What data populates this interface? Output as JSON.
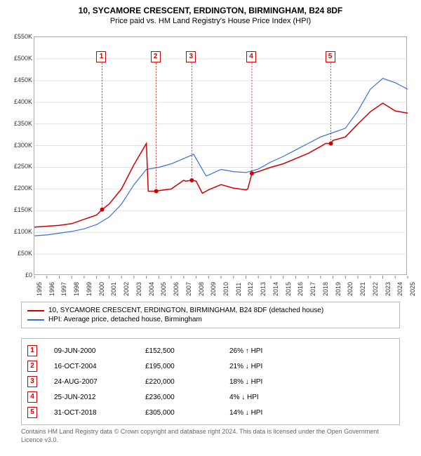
{
  "title": "10, SYCAMORE CRESCENT, ERDINGTON, BIRMINGHAM, B24 8DF",
  "subtitle": "Price paid vs. HM Land Registry's House Price Index (HPI)",
  "chart": {
    "type": "line",
    "background_color": "#ffffff",
    "grid_color": "#e0e0e0",
    "border_color": "#aaaaaa",
    "xlim": [
      1995,
      2025
    ],
    "ylim": [
      0,
      550
    ],
    "ytick_step": 50,
    "ytick_prefix": "£",
    "ytick_suffix": "K",
    "yticks": [
      "£0",
      "£50K",
      "£100K",
      "£150K",
      "£200K",
      "£250K",
      "£300K",
      "£350K",
      "£400K",
      "£450K",
      "£500K",
      "£550K"
    ],
    "xticks": [
      "1995",
      "1996",
      "1997",
      "1998",
      "1999",
      "2000",
      "2001",
      "2002",
      "2003",
      "2004",
      "2005",
      "2006",
      "2007",
      "2008",
      "2009",
      "2010",
      "2011",
      "2012",
      "2013",
      "2014",
      "2015",
      "2016",
      "2017",
      "2018",
      "2019",
      "2020",
      "2021",
      "2022",
      "2023",
      "2024",
      "2025"
    ],
    "title_fontsize": 12,
    "label_fontsize": 9,
    "series": {
      "price_paid": {
        "color": "#d00000",
        "width": 1.5,
        "label": "10, SYCAMORE CRESCENT, ERDINGTON, BIRMINGHAM, B24 8DF (detached house)",
        "data": [
          [
            1995,
            112
          ],
          [
            1996,
            114
          ],
          [
            1997,
            116
          ],
          [
            1998,
            120
          ],
          [
            1999,
            130
          ],
          [
            2000,
            140
          ],
          [
            2000.44,
            152.5
          ],
          [
            2001,
            165
          ],
          [
            2002,
            200
          ],
          [
            2003,
            256
          ],
          [
            2004,
            305
          ],
          [
            2004.15,
            195
          ],
          [
            2004.79,
            195
          ],
          [
            2005,
            196
          ],
          [
            2006,
            200
          ],
          [
            2007,
            220
          ],
          [
            2007.15,
            218
          ],
          [
            2007.65,
            220
          ],
          [
            2008,
            218
          ],
          [
            2008.5,
            190
          ],
          [
            2009,
            198
          ],
          [
            2010,
            210
          ],
          [
            2011,
            202
          ],
          [
            2012,
            198
          ],
          [
            2012.15,
            200
          ],
          [
            2012.48,
            236
          ],
          [
            2013,
            240
          ],
          [
            2014,
            250
          ],
          [
            2015,
            258
          ],
          [
            2016,
            270
          ],
          [
            2017,
            282
          ],
          [
            2018,
            298
          ],
          [
            2018.4,
            305
          ],
          [
            2018.83,
            305
          ],
          [
            2019,
            312
          ],
          [
            2020,
            320
          ],
          [
            2021,
            350
          ],
          [
            2022,
            378
          ],
          [
            2023,
            398
          ],
          [
            2024,
            380
          ],
          [
            2025,
            375
          ]
        ]
      },
      "hpi": {
        "color": "#3a6fd8",
        "width": 1.2,
        "label": "HPI: Average price, detached house, Birmingham",
        "data": [
          [
            1995,
            92
          ],
          [
            1996,
            94
          ],
          [
            1997,
            98
          ],
          [
            1998,
            102
          ],
          [
            1999,
            108
          ],
          [
            2000,
            118
          ],
          [
            2001,
            135
          ],
          [
            2002,
            165
          ],
          [
            2003,
            210
          ],
          [
            2004,
            245
          ],
          [
            2005,
            250
          ],
          [
            2006,
            258
          ],
          [
            2007,
            270
          ],
          [
            2007.8,
            280
          ],
          [
            2008,
            270
          ],
          [
            2008.8,
            230
          ],
          [
            2009,
            232
          ],
          [
            2010,
            245
          ],
          [
            2011,
            240
          ],
          [
            2012,
            238
          ],
          [
            2013,
            246
          ],
          [
            2014,
            262
          ],
          [
            2015,
            275
          ],
          [
            2016,
            290
          ],
          [
            2017,
            305
          ],
          [
            2018,
            320
          ],
          [
            2019,
            330
          ],
          [
            2020,
            340
          ],
          [
            2021,
            380
          ],
          [
            2022,
            430
          ],
          [
            2023,
            455
          ],
          [
            2024,
            445
          ],
          [
            2025,
            430
          ]
        ]
      }
    },
    "markers": [
      {
        "label": "1",
        "x": 2000.44,
        "y_top": 510
      },
      {
        "label": "2",
        "x": 2004.79,
        "y_top": 510
      },
      {
        "label": "3",
        "x": 2007.65,
        "y_top": 510
      },
      {
        "label": "4",
        "x": 2012.48,
        "y_top": 510
      },
      {
        "label": "5",
        "x": 2018.83,
        "y_top": 510
      }
    ],
    "price_points": [
      {
        "x": 2000.44,
        "y": 152.5
      },
      {
        "x": 2004.79,
        "y": 195
      },
      {
        "x": 2007.65,
        "y": 220
      },
      {
        "x": 2012.48,
        "y": 236
      },
      {
        "x": 2018.83,
        "y": 305
      }
    ]
  },
  "legend": {
    "items": [
      {
        "color": "#d00000",
        "label": "10, SYCAMORE CRESCENT, ERDINGTON, BIRMINGHAM, B24 8DF (detached house)"
      },
      {
        "color": "#3a6fd8",
        "label": "HPI: Average price, detached house, Birmingham"
      }
    ]
  },
  "transactions": [
    {
      "n": "1",
      "date": "09-JUN-2000",
      "price": "£152,500",
      "pct": "26% ↑ HPI"
    },
    {
      "n": "2",
      "date": "16-OCT-2004",
      "price": "£195,000",
      "pct": "21% ↓ HPI"
    },
    {
      "n": "3",
      "date": "24-AUG-2007",
      "price": "£220,000",
      "pct": "18% ↓ HPI"
    },
    {
      "n": "4",
      "date": "25-JUN-2012",
      "price": "£236,000",
      "pct": "4% ↓ HPI"
    },
    {
      "n": "5",
      "date": "31-OCT-2018",
      "price": "£305,000",
      "pct": "14% ↓ HPI"
    }
  ],
  "footer": "Contains HM Land Registry data © Crown copyright and database right 2024. This data is licensed under the Open Government Licence v3.0."
}
